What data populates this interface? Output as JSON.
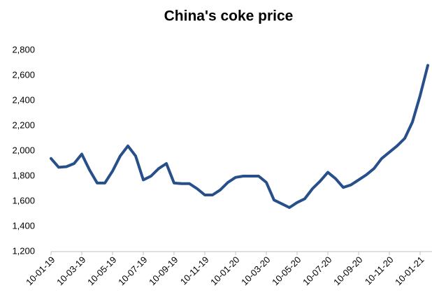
{
  "chart_data": {
    "type": "line",
    "title": "China's coke price",
    "categories": [
      "10-01-19",
      null,
      null,
      null,
      "10-03-19",
      null,
      null,
      null,
      "10-05-19",
      null,
      null,
      null,
      "10-07-19",
      null,
      null,
      null,
      "10-09-19",
      null,
      null,
      null,
      "10-11-19",
      null,
      null,
      null,
      "10-01-20",
      null,
      null,
      null,
      "10-03-20",
      null,
      null,
      null,
      "10-05-20",
      null,
      null,
      null,
      "10-07-20",
      null,
      null,
      null,
      "10-09-20",
      null,
      null,
      null,
      "10-11-20",
      null,
      null,
      null,
      "10-01-21",
      null
    ],
    "series": [
      {
        "name": "China's coke price",
        "color": "#27508a",
        "values": [
          1940,
          1870,
          1875,
          1900,
          1975,
          1850,
          1745,
          1745,
          1840,
          1960,
          2040,
          1960,
          1770,
          1800,
          1860,
          1900,
          1745,
          1740,
          1740,
          1700,
          1650,
          1650,
          1690,
          1750,
          1790,
          1800,
          1800,
          1800,
          1750,
          1610,
          1580,
          1550,
          1590,
          1620,
          1700,
          1760,
          1830,
          1780,
          1710,
          1730,
          1770,
          1810,
          1860,
          1940,
          1990,
          2040,
          2100,
          2230,
          2440,
          2680
        ]
      }
    ],
    "ylim": [
      1200,
      2800
    ],
    "yticks": [
      {
        "value": 1200,
        "label": "1,200"
      },
      {
        "value": 1400,
        "label": "1,400"
      },
      {
        "value": 1600,
        "label": "1,600"
      },
      {
        "value": 1800,
        "label": "1,800"
      },
      {
        "value": 2000,
        "label": "2,000"
      },
      {
        "value": 2200,
        "label": "2,200"
      },
      {
        "value": 2400,
        "label": "2,400"
      },
      {
        "value": 2600,
        "label": "2,600"
      },
      {
        "value": 2800,
        "label": "2,800"
      }
    ],
    "grid": false
  }
}
